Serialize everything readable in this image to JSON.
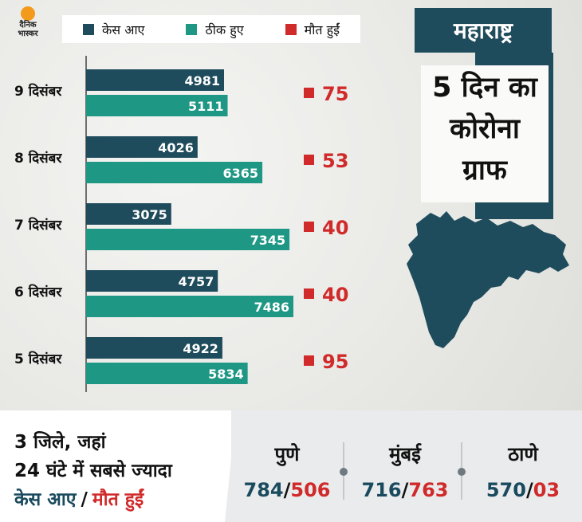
{
  "logo": {
    "line1": "दैनिक",
    "line2": "भास्कर"
  },
  "legend": [
    {
      "label": "केस आए",
      "color": "#1f4c5c"
    },
    {
      "label": "ठीक हुए",
      "color": "#1e9784"
    },
    {
      "label": "मौत हुईं",
      "color": "#d02a2a"
    }
  ],
  "title": {
    "state": "महाराष्ट्र",
    "sub_lines": [
      "5 दिन का",
      "कोरोना",
      "ग्राफ"
    ]
  },
  "chart_data": {
    "type": "bar",
    "orientation": "horizontal",
    "categories": [
      "9 दिसंबर",
      "8 दिसंबर",
      "7 दिसंबर",
      "6 दिसंबर",
      "5 दिसंबर"
    ],
    "series": [
      {
        "name": "केस आए",
        "values": [
          4981,
          4026,
          3075,
          4757,
          4922
        ],
        "color": "#1f4c5c"
      },
      {
        "name": "ठीक हुए",
        "values": [
          5111,
          6365,
          7345,
          7486,
          5834
        ],
        "color": "#1e9784"
      },
      {
        "name": "मौत हुईं",
        "values": [
          75,
          53,
          40,
          40,
          95
        ],
        "color": "#d02a2a"
      }
    ]
  },
  "bottom": {
    "headline_line1": "3 जिले, जहां",
    "headline_line2": "24 घंटे में सबसे ज्यादा",
    "headline_cases": "केस आए",
    "headline_sep": "/",
    "headline_deaths": "मौत हुईं",
    "slash": "/",
    "districts": [
      {
        "name": "पुणे",
        "cases": "784",
        "deaths": "506"
      },
      {
        "name": "मुंबई",
        "cases": "716",
        "deaths": "763"
      },
      {
        "name": "ठाणे",
        "cases": "570",
        "deaths": "03"
      }
    ]
  }
}
